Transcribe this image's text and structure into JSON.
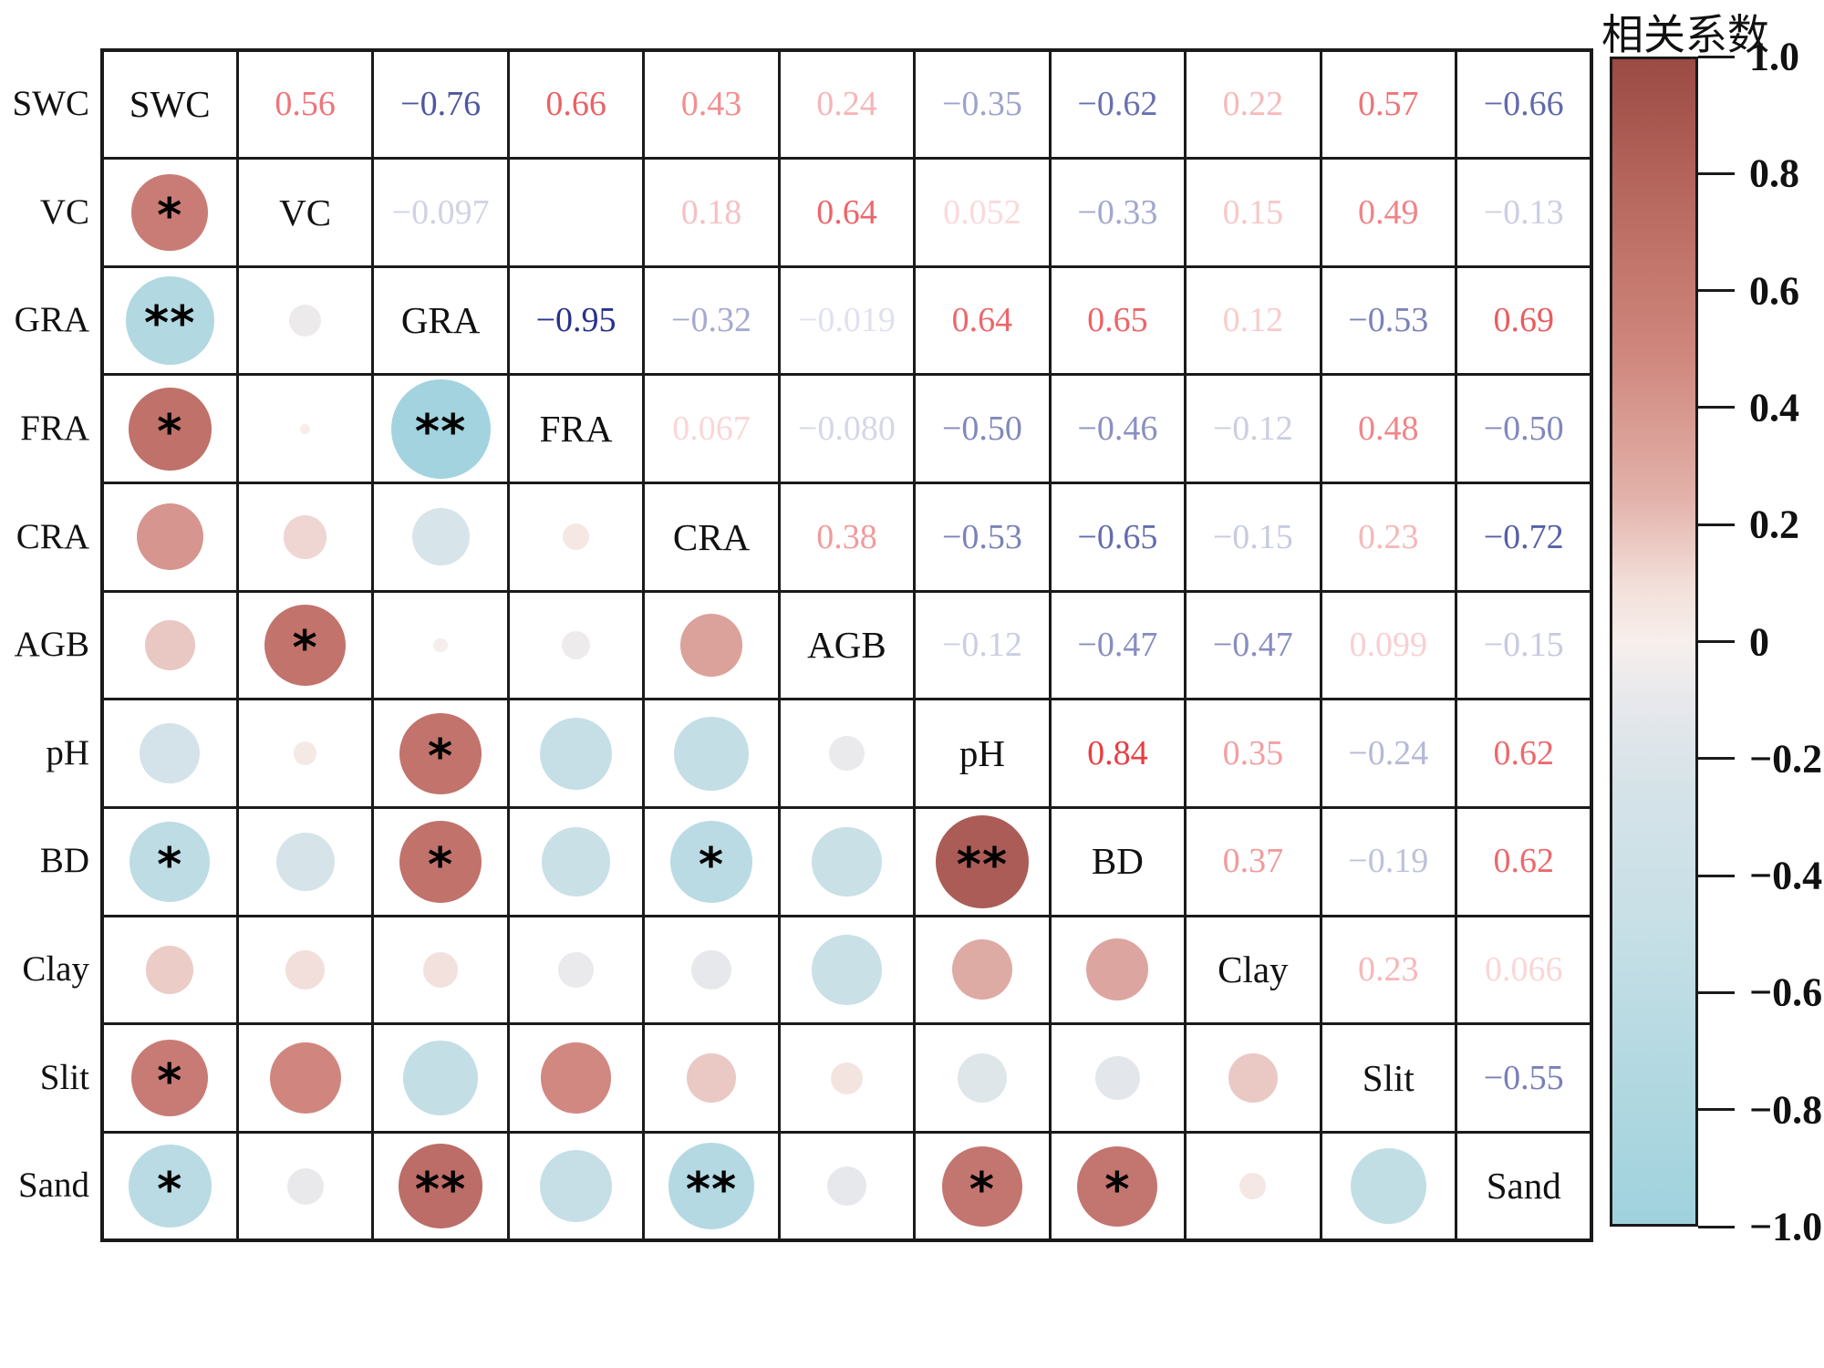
{
  "legend": {
    "title": "相关系数",
    "ticks": [
      "1.0",
      "0.8",
      "0.6",
      "0.4",
      "0.2",
      "0",
      "−0.2",
      "−0.4",
      "−0.6",
      "−0.8",
      "−1.0"
    ],
    "range": [
      -1,
      1
    ],
    "top_color": "#9c4a44",
    "mid_color": "#f7efec",
    "bottom_color": "#9fd2dd"
  },
  "chart_data": {
    "type": "heatmap",
    "subtype": "correlation-matrix",
    "variables": [
      "SWC",
      "VC",
      "GRA",
      "FRA",
      "CRA",
      "AGB",
      "pH",
      "BD",
      "Clay",
      "Slit",
      "Sand"
    ],
    "upper_triangle_shows": "coefficient values",
    "lower_triangle_shows": "circles sized by |r| with significance stars",
    "text_positive_color": "#e31e24",
    "text_negative_color": "#1f2a87",
    "pairs": [
      {
        "row": "VC",
        "col": "SWC",
        "r": 0.56,
        "label": "0.56",
        "sig": "*"
      },
      {
        "row": "GRA",
        "col": "SWC",
        "r": -0.76,
        "label": "−0.76",
        "sig": "**"
      },
      {
        "row": "GRA",
        "col": "VC",
        "r": -0.097,
        "label": "−0.097",
        "sig": ""
      },
      {
        "row": "FRA",
        "col": "SWC",
        "r": 0.66,
        "label": "0.66",
        "sig": "*"
      },
      {
        "row": "FRA",
        "col": "VC",
        "r": 0.01,
        "label": "",
        "sig": ""
      },
      {
        "row": "FRA",
        "col": "GRA",
        "r": -0.95,
        "label": "−0.95",
        "sig": "**"
      },
      {
        "row": "CRA",
        "col": "SWC",
        "r": 0.43,
        "label": "0.43",
        "sig": ""
      },
      {
        "row": "CRA",
        "col": "VC",
        "r": 0.18,
        "label": "0.18",
        "sig": ""
      },
      {
        "row": "CRA",
        "col": "GRA",
        "r": -0.32,
        "label": "−0.32",
        "sig": ""
      },
      {
        "row": "CRA",
        "col": "FRA",
        "r": 0.067,
        "label": "0.067",
        "sig": ""
      },
      {
        "row": "AGB",
        "col": "SWC",
        "r": 0.24,
        "label": "0.24",
        "sig": ""
      },
      {
        "row": "AGB",
        "col": "VC",
        "r": 0.64,
        "label": "0.64",
        "sig": "*"
      },
      {
        "row": "AGB",
        "col": "GRA",
        "r": -0.019,
        "label": "−0.019",
        "sig": ""
      },
      {
        "row": "AGB",
        "col": "FRA",
        "r": -0.08,
        "label": "−0.080",
        "sig": ""
      },
      {
        "row": "AGB",
        "col": "CRA",
        "r": 0.38,
        "label": "0.38",
        "sig": ""
      },
      {
        "row": "pH",
        "col": "SWC",
        "r": -0.35,
        "label": "−0.35",
        "sig": ""
      },
      {
        "row": "pH",
        "col": "VC",
        "r": 0.052,
        "label": "0.052",
        "sig": ""
      },
      {
        "row": "pH",
        "col": "GRA",
        "r": 0.64,
        "label": "0.64",
        "sig": "*"
      },
      {
        "row": "pH",
        "col": "FRA",
        "r": -0.5,
        "label": "−0.50",
        "sig": ""
      },
      {
        "row": "pH",
        "col": "CRA",
        "r": -0.53,
        "label": "−0.53",
        "sig": ""
      },
      {
        "row": "pH",
        "col": "AGB",
        "r": -0.12,
        "label": "−0.12",
        "sig": ""
      },
      {
        "row": "BD",
        "col": "SWC",
        "r": -0.62,
        "label": "−0.62",
        "sig": "*"
      },
      {
        "row": "BD",
        "col": "VC",
        "r": -0.33,
        "label": "−0.33",
        "sig": ""
      },
      {
        "row": "BD",
        "col": "GRA",
        "r": 0.65,
        "label": "0.65",
        "sig": "*"
      },
      {
        "row": "BD",
        "col": "FRA",
        "r": -0.46,
        "label": "−0.46",
        "sig": ""
      },
      {
        "row": "BD",
        "col": "CRA",
        "r": -0.65,
        "label": "−0.65",
        "sig": "*"
      },
      {
        "row": "BD",
        "col": "AGB",
        "r": -0.47,
        "label": "−0.47",
        "sig": ""
      },
      {
        "row": "BD",
        "col": "pH",
        "r": 0.84,
        "label": "0.84",
        "sig": "**"
      },
      {
        "row": "Clay",
        "col": "SWC",
        "r": 0.22,
        "label": "0.22",
        "sig": ""
      },
      {
        "row": "Clay",
        "col": "VC",
        "r": 0.15,
        "label": "0.15",
        "sig": ""
      },
      {
        "row": "Clay",
        "col": "GRA",
        "r": 0.12,
        "label": "0.12",
        "sig": ""
      },
      {
        "row": "Clay",
        "col": "FRA",
        "r": -0.12,
        "label": "−0.12",
        "sig": ""
      },
      {
        "row": "Clay",
        "col": "CRA",
        "r": -0.15,
        "label": "−0.15",
        "sig": ""
      },
      {
        "row": "Clay",
        "col": "AGB",
        "r": -0.47,
        "label": "−0.47",
        "sig": ""
      },
      {
        "row": "Clay",
        "col": "pH",
        "r": 0.35,
        "label": "0.35",
        "sig": ""
      },
      {
        "row": "Clay",
        "col": "BD",
        "r": 0.37,
        "label": "0.37",
        "sig": ""
      },
      {
        "row": "Slit",
        "col": "SWC",
        "r": 0.57,
        "label": "0.57",
        "sig": "*"
      },
      {
        "row": "Slit",
        "col": "VC",
        "r": 0.49,
        "label": "0.49",
        "sig": ""
      },
      {
        "row": "Slit",
        "col": "GRA",
        "r": -0.53,
        "label": "−0.53",
        "sig": ""
      },
      {
        "row": "Slit",
        "col": "FRA",
        "r": 0.48,
        "label": "0.48",
        "sig": ""
      },
      {
        "row": "Slit",
        "col": "CRA",
        "r": 0.23,
        "label": "0.23",
        "sig": ""
      },
      {
        "row": "Slit",
        "col": "AGB",
        "r": 0.099,
        "label": "0.099",
        "sig": ""
      },
      {
        "row": "Slit",
        "col": "pH",
        "r": -0.24,
        "label": "−0.24",
        "sig": ""
      },
      {
        "row": "Slit",
        "col": "BD",
        "r": -0.19,
        "label": "−0.19",
        "sig": ""
      },
      {
        "row": "Slit",
        "col": "Clay",
        "r": 0.23,
        "label": "0.23",
        "sig": ""
      },
      {
        "row": "Sand",
        "col": "SWC",
        "r": -0.66,
        "label": "−0.66",
        "sig": "*"
      },
      {
        "row": "Sand",
        "col": "VC",
        "r": -0.13,
        "label": "−0.13",
        "sig": ""
      },
      {
        "row": "Sand",
        "col": "GRA",
        "r": 0.69,
        "label": "0.69",
        "sig": "**"
      },
      {
        "row": "Sand",
        "col": "FRA",
        "r": -0.5,
        "label": "−0.50",
        "sig": ""
      },
      {
        "row": "Sand",
        "col": "CRA",
        "r": -0.72,
        "label": "−0.72",
        "sig": "**"
      },
      {
        "row": "Sand",
        "col": "AGB",
        "r": -0.15,
        "label": "−0.15",
        "sig": ""
      },
      {
        "row": "Sand",
        "col": "pH",
        "r": 0.62,
        "label": "0.62",
        "sig": "*"
      },
      {
        "row": "Sand",
        "col": "BD",
        "r": 0.62,
        "label": "0.62",
        "sig": "*"
      },
      {
        "row": "Sand",
        "col": "Clay",
        "r": 0.066,
        "label": "0.066",
        "sig": ""
      },
      {
        "row": "Sand",
        "col": "Slit",
        "r": -0.55,
        "label": "−0.55",
        "sig": ""
      }
    ]
  }
}
